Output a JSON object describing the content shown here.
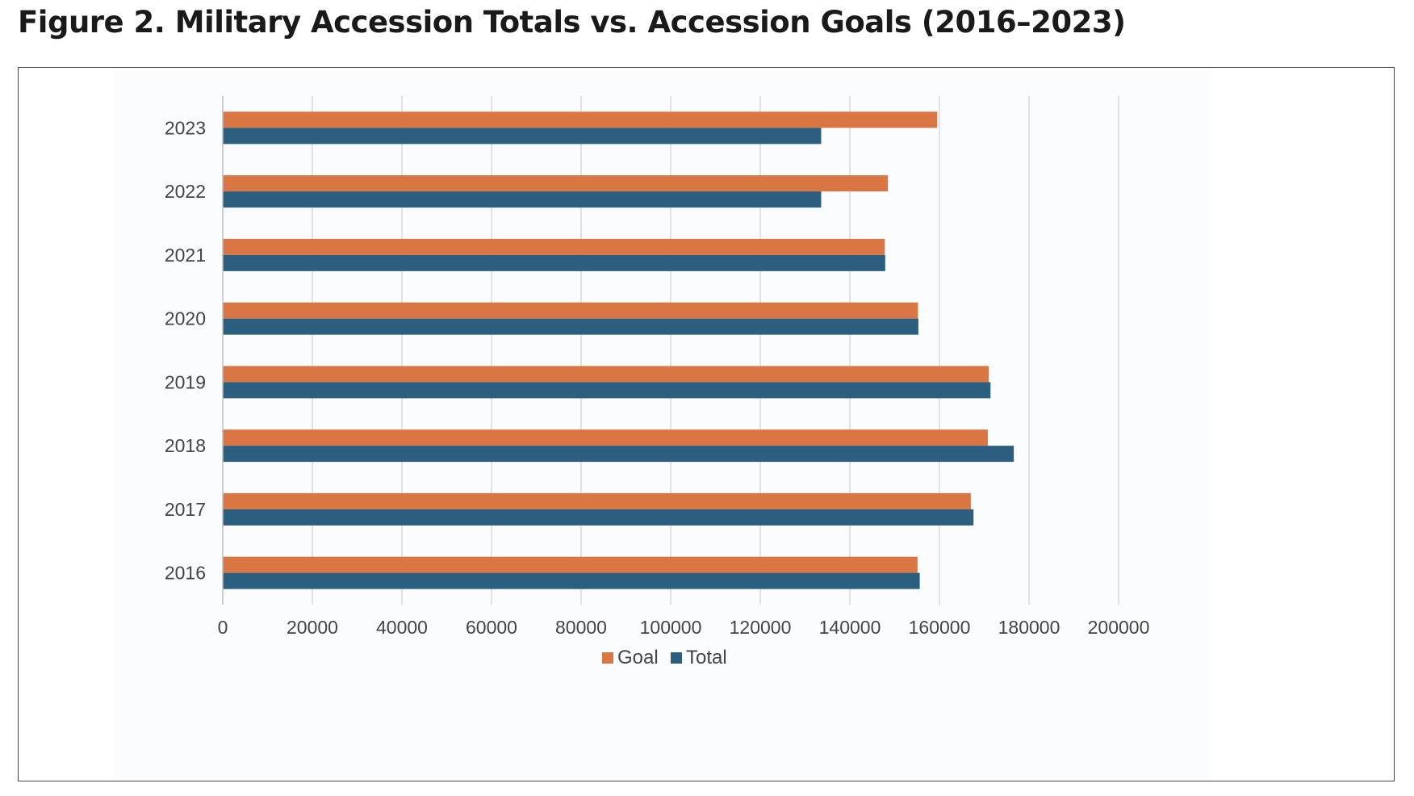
{
  "figure_title": "Figure 2. Military Accession Totals vs. Accession Goals (2016–2023)",
  "colors": {
    "goal": "#D97643",
    "total": "#2C5F7F",
    "grid": "#D9D9D9",
    "axis": "#BFBFBF",
    "plot_bg": "#FBFCFE"
  },
  "chart_data": {
    "type": "bar",
    "orientation": "horizontal",
    "title": "",
    "xlabel": "",
    "ylabel": "",
    "xlim": [
      0,
      200000
    ],
    "x_ticks": [
      0,
      20000,
      40000,
      60000,
      80000,
      100000,
      120000,
      140000,
      160000,
      180000,
      200000
    ],
    "x_tick_labels": [
      "0",
      "20000",
      "40000",
      "60000",
      "80000",
      "100000",
      "120000",
      "140000",
      "160000",
      "180000",
      "200000"
    ],
    "grid": true,
    "legend_position": "bottom",
    "categories": [
      "2023",
      "2022",
      "2021",
      "2020",
      "2019",
      "2018",
      "2017",
      "2016"
    ],
    "series": [
      {
        "name": "Goal",
        "color": "#D97643",
        "values": [
          159500,
          148500,
          147800,
          155200,
          171000,
          170800,
          167000,
          155100
        ]
      },
      {
        "name": "Total",
        "color": "#2C5F7F",
        "values": [
          133600,
          133600,
          147900,
          155300,
          171400,
          176600,
          167600,
          155600
        ]
      }
    ]
  }
}
